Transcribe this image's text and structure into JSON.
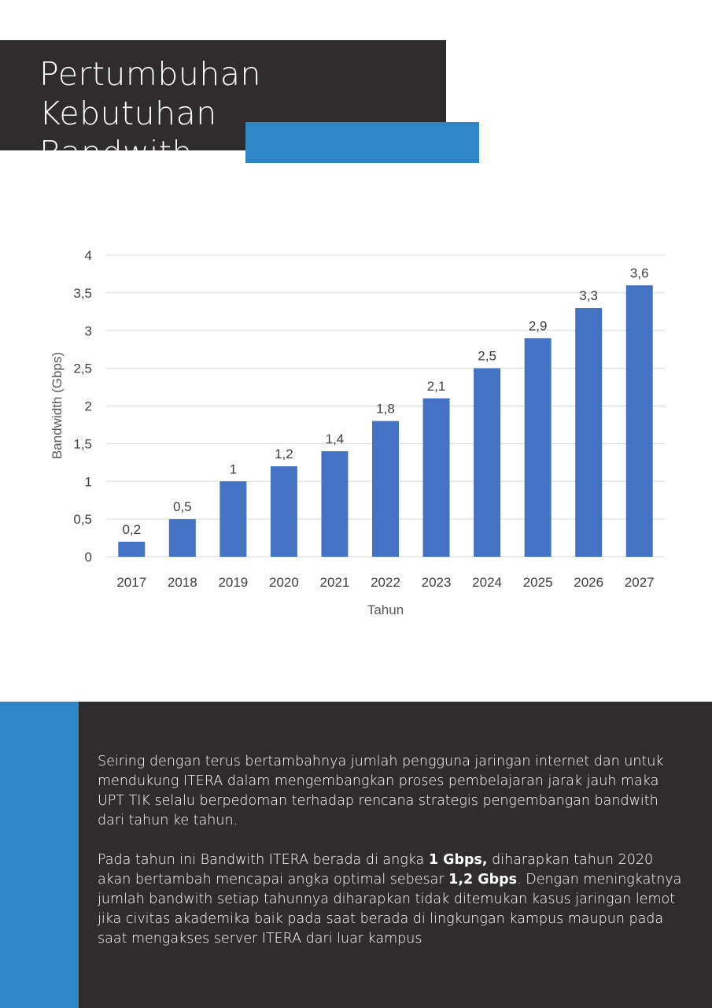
{
  "header": {
    "title_line1": "Pertumbuhan Kebutuhan",
    "title_line2": "Bandwith"
  },
  "colors": {
    "dark_bg": "#2f2c2d",
    "accent_blue": "#2e86c7",
    "bar_blue": "#4472c4"
  },
  "chart_data": {
    "type": "bar",
    "categories": [
      "2017",
      "2018",
      "2019",
      "2020",
      "2021",
      "2022",
      "2023",
      "2024",
      "2025",
      "2026",
      "2027"
    ],
    "values": [
      0.2,
      0.5,
      1,
      1.2,
      1.4,
      1.8,
      2.1,
      2.5,
      2.9,
      3.3,
      3.6
    ],
    "value_labels": [
      "0,2",
      "0,5",
      "1",
      "1,2",
      "1,4",
      "1,8",
      "2,1",
      "2,5",
      "2,9",
      "3,3",
      "3,6"
    ],
    "y_ticks": [
      "0",
      "0,5",
      "1",
      "1,5",
      "2",
      "2,5",
      "3",
      "3,5",
      "4"
    ],
    "xlabel": "Tahun",
    "ylabel": "Bandwidth (Gbps)",
    "ylim": [
      0,
      4
    ],
    "grid": true
  },
  "body": {
    "para1": "Seiring dengan terus bertambahnya jumlah pengguna jaringan internet dan untuk mendukung ITERA dalam mengembangkan proses pembelajaran jarak jauh maka UPT TIK selalu berpedoman terhadap rencana strategis pengembangan bandwith dari tahun ke tahun.",
    "para2_a": "Pada tahun ini Bandwith ITERA berada di angka ",
    "para2_b": "1 Gbps,",
    "para2_c": " diharapkan tahun 2020 akan bertambah mencapai angka optimal sebesar ",
    "para2_d": "1,2 Gbps",
    "para2_e": ". Dengan meningkatnya jumlah bandwith setiap tahunnya diharapkan tidak ditemukan kasus jaringan lemot jika civitas akademika baik pada saat berada di lingkungan kampus maupun pada saat mengakses server ITERA dari luar kampus"
  }
}
